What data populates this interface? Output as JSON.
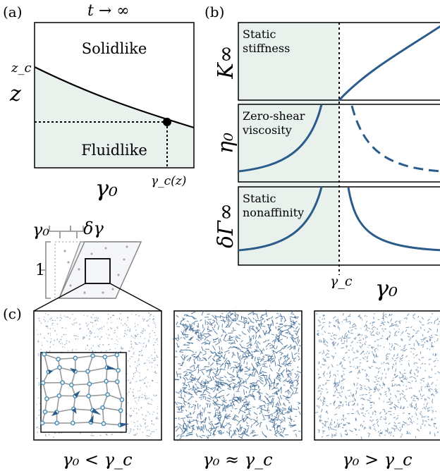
{
  "panel_a": {
    "tag": "(a)",
    "title": "t → ∞",
    "region_upper": "Solidlike",
    "region_lower": "Fluidlike",
    "y_axis_label": "z",
    "y_tick": "z_c",
    "x_axis_label": "γ₀",
    "x_tick": "γ_c(z)"
  },
  "panel_b": {
    "tag": "(b)",
    "rows": [
      {
        "ylabel": "K∞",
        "annotation_line1": "Static",
        "annotation_line2": "stiffness"
      },
      {
        "ylabel": "η₀",
        "annotation_line1": "Zero-shear",
        "annotation_line2": "viscosity"
      },
      {
        "ylabel": "δΓ∞",
        "annotation_line1": "Static",
        "annotation_line2": "nonaffinity"
      }
    ],
    "x_tick": "γ_c",
    "x_axis_label": "γ₀"
  },
  "schematic": {
    "label_gamma0": "γ₀",
    "label_dgamma": "δγ",
    "label_one": "1"
  },
  "panel_c": {
    "tag": "(c)",
    "captions": [
      "γ₀ < γ_c",
      "γ₀ ≈ γ_c",
      "γ₀ > γ_c"
    ]
  },
  "colors": {
    "curve": "#2b5b8a",
    "shade": "#e8f1ec",
    "arrows": "#2b5b8a",
    "network_node": "#4a8fb8"
  }
}
